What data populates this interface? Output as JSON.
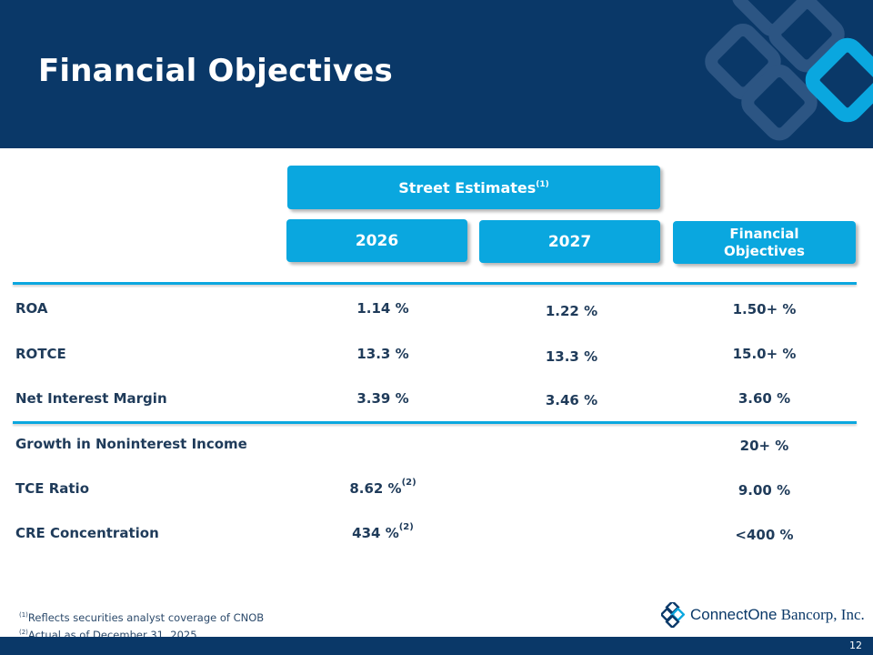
{
  "header": {
    "title": "Financial Objectives"
  },
  "columns": {
    "street_estimates": "Street Estimates",
    "street_estimates_note": "(1)",
    "year_1": "2026",
    "year_2": "2027",
    "objectives_line1": "Financial",
    "objectives_line2": "Objectives"
  },
  "rows": [
    {
      "label": "ROA",
      "y2026": "1.14 %",
      "y2026_note": "",
      "y2027": "1.22 %",
      "objective": "1.50+ %"
    },
    {
      "label": "ROTCE",
      "y2026": "13.3 %",
      "y2026_note": "",
      "y2027": "13.3 %",
      "objective": "15.0+ %"
    },
    {
      "label": "Net Interest Margin",
      "y2026": "3.39 %",
      "y2026_note": "",
      "y2027": "3.46 %",
      "objective": "3.60 %"
    },
    {
      "label": "Growth in Noninterest Income",
      "y2026": "",
      "y2026_note": "",
      "y2027": "",
      "objective": "20+ %"
    },
    {
      "label": "TCE Ratio",
      "y2026": "8.62 %",
      "y2026_note": "(2)",
      "y2027": "",
      "objective": "9.00 %"
    },
    {
      "label": "CRE Concentration",
      "y2026": "434 %",
      "y2026_note": "(2)",
      "y2027": "",
      "objective": "<400 %"
    }
  ],
  "footnotes": [
    {
      "mark": "(1)",
      "text": "Reflects securities analyst coverage of CNOB"
    },
    {
      "mark": "(2)",
      "text": "Actual as of December 31, 2025"
    }
  ],
  "logo": {
    "name_part1": "ConnectOne",
    "name_part2": "Bancorp, Inc."
  },
  "page_number": "12",
  "colors": {
    "navy": "#0a3868",
    "accent": "#0aa7df",
    "text": "#1f3b5a"
  }
}
